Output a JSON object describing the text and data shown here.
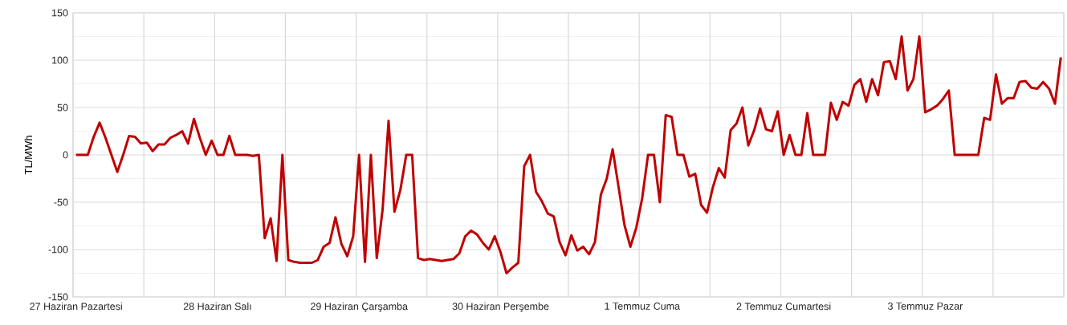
{
  "chart_data": {
    "type": "line",
    "ylabel": "TL/MWh",
    "color": "#c00000",
    "grid": true,
    "marker": "none",
    "line_style": "solid",
    "ylim": [
      -150,
      150
    ],
    "yticks": [
      -150,
      -100,
      -50,
      0,
      50,
      100,
      150
    ],
    "categories": [
      "27 Haziran Pazartesi",
      null,
      null,
      null,
      null,
      null,
      null,
      null,
      null,
      null,
      null,
      null,
      null,
      null,
      null,
      null,
      null,
      null,
      null,
      null,
      null,
      null,
      null,
      null,
      "28 Haziran Salı",
      null,
      null,
      null,
      null,
      null,
      null,
      null,
      null,
      null,
      null,
      null,
      null,
      null,
      null,
      null,
      null,
      null,
      null,
      null,
      null,
      null,
      null,
      null,
      "29 Haziran Çarşamba",
      null,
      null,
      null,
      null,
      null,
      null,
      null,
      null,
      null,
      null,
      null,
      null,
      null,
      null,
      null,
      null,
      null,
      null,
      null,
      null,
      null,
      null,
      null,
      "30 Haziran Perşembe",
      null,
      null,
      null,
      null,
      null,
      null,
      null,
      null,
      null,
      null,
      null,
      null,
      null,
      null,
      null,
      null,
      null,
      null,
      null,
      null,
      null,
      null,
      null,
      "1 Temmuz Cuma",
      null,
      null,
      null,
      null,
      null,
      null,
      null,
      null,
      null,
      null,
      null,
      null,
      null,
      null,
      null,
      null,
      null,
      null,
      null,
      null,
      null,
      null,
      null,
      "2 Temmuz Cumartesi",
      null,
      null,
      null,
      null,
      null,
      null,
      null,
      null,
      null,
      null,
      null,
      null,
      null,
      null,
      null,
      null,
      null,
      null,
      null,
      null,
      null,
      null,
      null,
      "3 Temmuz Pazar",
      null,
      null,
      null,
      null,
      null,
      null,
      null,
      null,
      null,
      null,
      null,
      null,
      null,
      null,
      null,
      null,
      null,
      null,
      null,
      null,
      null,
      null,
      null
    ],
    "values": [
      0,
      0,
      0,
      19,
      34,
      18,
      0,
      -18,
      0,
      20,
      19,
      12,
      13,
      4,
      11,
      11,
      18,
      21,
      25,
      12,
      38,
      18,
      0,
      15,
      0,
      0,
      20,
      0,
      0,
      0,
      -1,
      0,
      -88,
      -67,
      -112,
      0,
      -111,
      -113,
      -114,
      -114,
      -114,
      -111,
      -97,
      -93,
      -66,
      -94,
      -107,
      -86,
      0,
      -113,
      0,
      -109,
      -57,
      36,
      -60,
      -37,
      0,
      0,
      -109,
      -111,
      -110,
      -111,
      -112,
      -111,
      -110,
      -104,
      -86,
      -80,
      -84,
      -93,
      -100,
      -86,
      -103,
      -125,
      -119,
      -114,
      -12,
      0,
      -39,
      -49,
      -62,
      -65,
      -92,
      -106,
      -85,
      -101,
      -97,
      -105,
      -92,
      -42,
      -25,
      6,
      -34,
      -74,
      -97,
      -77,
      -46,
      0,
      0,
      -50,
      42,
      40,
      0,
      0,
      -23,
      -20,
      -53,
      -61,
      -34,
      -14,
      -24,
      26,
      33,
      50,
      10,
      26,
      49,
      27,
      25,
      46,
      0,
      21,
      0,
      0,
      44,
      0,
      0,
      0,
      55,
      37,
      56,
      52,
      74,
      80,
      56,
      80,
      63,
      98,
      99,
      80,
      125,
      68,
      80,
      125,
      45,
      48,
      52,
      59,
      68,
      0,
      0,
      0,
      0,
      0,
      39,
      37,
      85,
      54,
      60,
      60,
      77,
      78,
      71,
      70,
      77,
      70,
      54,
      103
    ]
  }
}
